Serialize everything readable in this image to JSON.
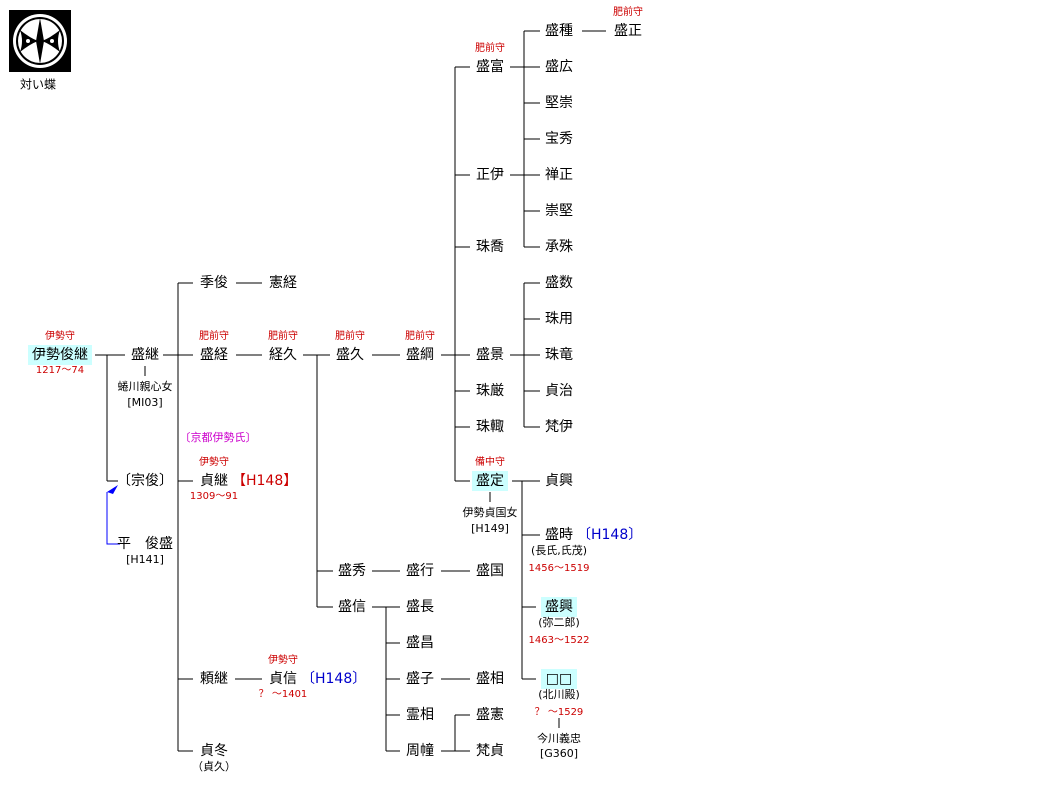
{
  "crest_label": "対い蝶",
  "group_label": "〔京都伊勢氏〕",
  "nodes": [
    {
      "name": "伊勢俊継",
      "title": "伊勢守",
      "dates": "1217〜74",
      "highlight": true
    },
    {
      "name": "盛継",
      "notes": [
        "蜷川親心女",
        "[MI03]"
      ]
    },
    {
      "name": "〔宗俊〕"
    },
    {
      "name": "平　俊盛",
      "notes": [
        "[H141]"
      ]
    },
    {
      "name": "季俊"
    },
    {
      "name": "憲経"
    },
    {
      "name": "盛経",
      "title": "肥前守"
    },
    {
      "name": "経久",
      "title": "肥前守"
    },
    {
      "name": "盛久",
      "title": "肥前守"
    },
    {
      "name": "盛綱",
      "title": "肥前守"
    },
    {
      "name": "貞継",
      "title": "伊勢守",
      "ref": {
        "text": "【H148】",
        "color": "#cc0000"
      },
      "dates": "1309〜91"
    },
    {
      "name": "頼継"
    },
    {
      "name": "貞冬",
      "notes": [
        "（貞久）"
      ]
    },
    {
      "name": "貞信",
      "title": "伊勢守",
      "ref": {
        "text": "〔H148〕",
        "color": "#0000cc"
      },
      "dates": "？ 〜1401"
    },
    {
      "name": "盛秀"
    },
    {
      "name": "盛行"
    },
    {
      "name": "盛国"
    },
    {
      "name": "盛信"
    },
    {
      "name": "盛長"
    },
    {
      "name": "盛昌"
    },
    {
      "name": "盛子"
    },
    {
      "name": "盛相"
    },
    {
      "name": "霊相"
    },
    {
      "name": "盛憲"
    },
    {
      "name": "周幢"
    },
    {
      "name": "梵貞"
    },
    {
      "name": "盛富",
      "title": "肥前守"
    },
    {
      "name": "正伊"
    },
    {
      "name": "珠喬"
    },
    {
      "name": "盛景"
    },
    {
      "name": "珠厳"
    },
    {
      "name": "珠輙"
    },
    {
      "name": "盛定",
      "title": "備中守",
      "notes": [
        "伊勢貞国女",
        "[H149]"
      ],
      "highlight": true
    },
    {
      "name": "盛種"
    },
    {
      "name": "盛正",
      "title": "肥前守"
    },
    {
      "name": "盛広"
    },
    {
      "name": "堅崇"
    },
    {
      "name": "宝秀"
    },
    {
      "name": "禅正"
    },
    {
      "name": "崇堅"
    },
    {
      "name": "承殊"
    },
    {
      "name": "盛数"
    },
    {
      "name": "珠用"
    },
    {
      "name": "珠竜"
    },
    {
      "name": "貞治"
    },
    {
      "name": "梵伊"
    },
    {
      "name": "貞興"
    },
    {
      "name": "盛時",
      "ref": {
        "text": "〔H148〕",
        "color": "#0000cc"
      },
      "notes": [
        "(長氏,氏茂)"
      ],
      "dates": "1456〜1519"
    },
    {
      "name": "盛興",
      "notes": [
        "(弥二郎)"
      ],
      "dates": "1463〜1522",
      "highlight": true
    },
    {
      "name": "□□",
      "notes": [
        "(北川殿)"
      ],
      "dates": "？ 〜1529",
      "after": [
        "今川義忠",
        "[G360]"
      ],
      "highlight": true
    }
  ]
}
